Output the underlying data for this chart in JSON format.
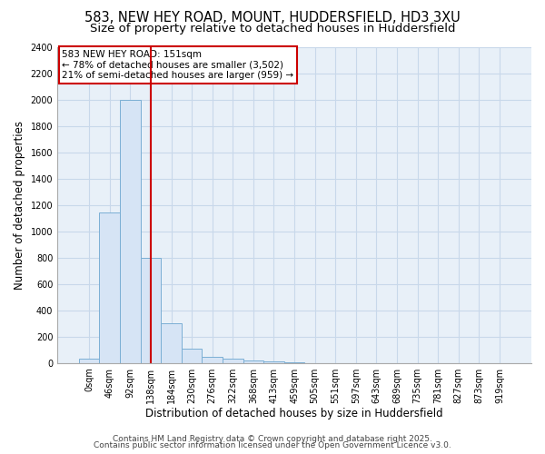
{
  "title_line1": "583, NEW HEY ROAD, MOUNT, HUDDERSFIELD, HD3 3XU",
  "title_line2": "Size of property relative to detached houses in Huddersfield",
  "xlabel": "Distribution of detached houses by size in Huddersfield",
  "ylabel": "Number of detached properties",
  "bar_categories": [
    "0sqm",
    "46sqm",
    "92sqm",
    "138sqm",
    "184sqm",
    "230sqm",
    "276sqm",
    "322sqm",
    "368sqm",
    "413sqm",
    "459sqm",
    "505sqm",
    "551sqm",
    "597sqm",
    "643sqm",
    "689sqm",
    "735sqm",
    "781sqm",
    "827sqm",
    "873sqm",
    "919sqm"
  ],
  "bar_values": [
    30,
    1140,
    2000,
    800,
    300,
    105,
    45,
    35,
    20,
    10,
    5,
    0,
    0,
    0,
    0,
    0,
    0,
    0,
    0,
    0,
    0
  ],
  "bar_color": "#d6e4f5",
  "bar_edge_color": "#7bafd4",
  "annotation_text": "583 NEW HEY ROAD: 151sqm\n← 78% of detached houses are smaller (3,502)\n21% of semi-detached houses are larger (959) →",
  "annotation_box_color": "white",
  "annotation_box_edge_color": "#cc0000",
  "vline_x": 3.0,
  "vline_color": "#cc0000",
  "ylim": [
    0,
    2400
  ],
  "yticks": [
    0,
    200,
    400,
    600,
    800,
    1000,
    1200,
    1400,
    1600,
    1800,
    2000,
    2200,
    2400
  ],
  "grid_color": "#c8d8ea",
  "plot_bg_color": "#e8f0f8",
  "fig_bg_color": "#ffffff",
  "footer_line1": "Contains HM Land Registry data © Crown copyright and database right 2025.",
  "footer_line2": "Contains public sector information licensed under the Open Government Licence v3.0.",
  "title_fontsize": 10.5,
  "subtitle_fontsize": 9.5,
  "tick_fontsize": 7,
  "axis_label_fontsize": 8.5,
  "annotation_fontsize": 7.5,
  "footer_fontsize": 6.5
}
